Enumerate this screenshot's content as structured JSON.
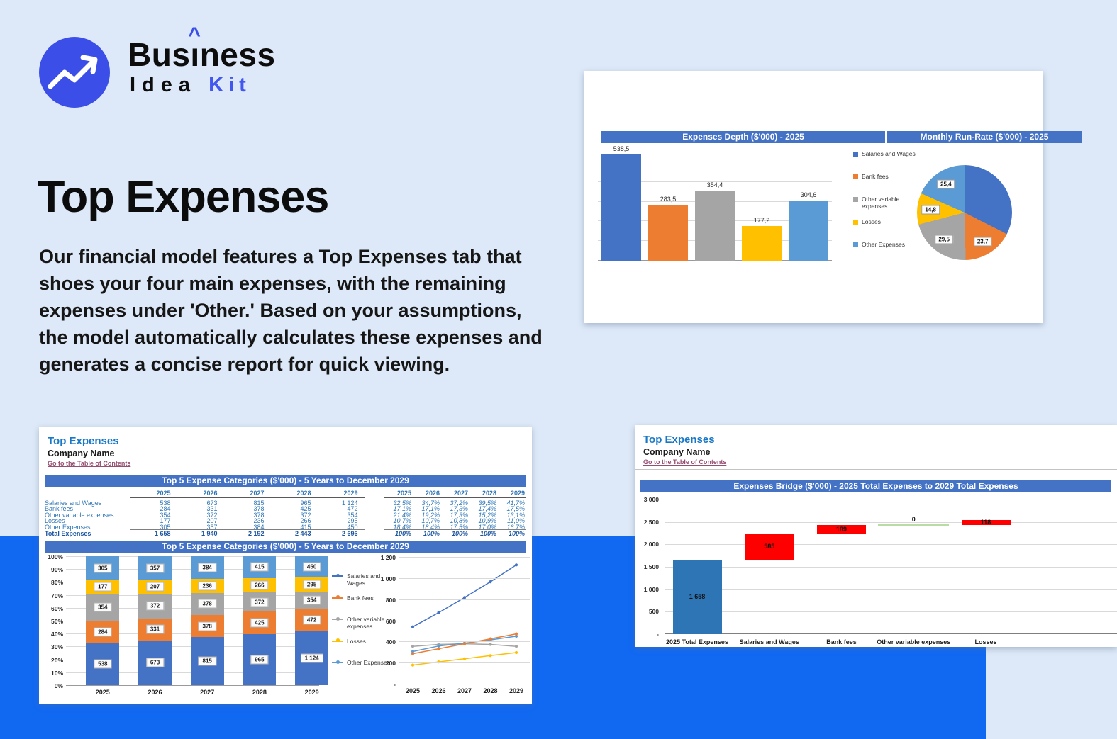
{
  "page": {
    "bg_top": "#dde9f8",
    "bg_band": "#1169f2",
    "card_bg": "#ffffff"
  },
  "logo": {
    "icon": "trend-up-arrow-icon",
    "brand_prefix": "Bus",
    "accent_letter": "ı",
    "accent_mark": "^",
    "brand_suffix": "ness",
    "line2_left": "Idea",
    "line2_right": "Kit",
    "circle_color": "#3b4fe8",
    "kit_color": "#4256f2"
  },
  "hero": {
    "title": "Top Expenses",
    "description": "Our financial model features a Top Expenses tab that shoes your four main expenses, with the remaining expenses under 'Other.' Based on your assumptions, the model automatically calculates these expenses and generates a concise report for quick viewing."
  },
  "excel": {
    "title": "Top Expenses",
    "company": "Company Name",
    "toc_link": "Go to the Table of Contents",
    "header_color": "#4472c4"
  },
  "palette": [
    "#4472c4",
    "#ed7d31",
    "#a5a5a5",
    "#ffc000",
    "#5b9bd5"
  ],
  "waterfall_colors": {
    "base": "#2e75b6",
    "increase": "#ff0000",
    "zero": "#b9dca4"
  },
  "chart_data": [
    {
      "id": "depth",
      "type": "bar",
      "title": "Expenses Depth ($'000) - 2025",
      "categories": [
        "Salaries and Wages",
        "Bank fees",
        "Other variable expenses",
        "Losses",
        "Other Expenses"
      ],
      "values": [
        538.5,
        283.5,
        354.4,
        177.2,
        304.6
      ],
      "labels": [
        "538,5",
        "283,5",
        "354,4",
        "177,2",
        "304,6"
      ],
      "ylim": [
        0,
        600
      ],
      "ytick_step": 100,
      "grid": true,
      "legend_position": "right"
    },
    {
      "id": "runrate",
      "type": "pie",
      "title": "Monthly Run-Rate ($'000) - 2025",
      "slices": [
        {
          "name": "Salaries and Wages",
          "value": 44.9,
          "label": ""
        },
        {
          "name": "Bank fees",
          "value": 23.7,
          "label": "23,7"
        },
        {
          "name": "Other variable expenses",
          "value": 29.5,
          "label": "29,5"
        },
        {
          "name": "Losses",
          "value": 14.8,
          "label": "14,8"
        },
        {
          "name": "Other Expenses",
          "value": 25.4,
          "label": "25,4"
        }
      ]
    },
    {
      "id": "top5_table",
      "type": "table",
      "title": "Top 5 Expense Categories ($'000) - 5 Years to December 2029",
      "years": [
        "2025",
        "2026",
        "2027",
        "2028",
        "2029"
      ],
      "rows": [
        {
          "label": "Salaries and Wages",
          "values": [
            "538",
            "673",
            "815",
            "965",
            "1 124"
          ],
          "pcts": [
            "32,5%",
            "34,7%",
            "37,2%",
            "39,5%",
            "41,7%"
          ]
        },
        {
          "label": "Bank fees",
          "values": [
            "284",
            "331",
            "378",
            "425",
            "472"
          ],
          "pcts": [
            "17,1%",
            "17,1%",
            "17,3%",
            "17,4%",
            "17,5%"
          ]
        },
        {
          "label": "Other variable expenses",
          "values": [
            "354",
            "372",
            "378",
            "372",
            "354"
          ],
          "pcts": [
            "21,4%",
            "19,2%",
            "17,3%",
            "15,2%",
            "13,1%"
          ]
        },
        {
          "label": "Losses",
          "values": [
            "177",
            "207",
            "236",
            "266",
            "295"
          ],
          "pcts": [
            "10,7%",
            "10,7%",
            "10,8%",
            "10,9%",
            "11,0%"
          ]
        },
        {
          "label": "Other Expenses",
          "values": [
            "305",
            "357",
            "384",
            "415",
            "450"
          ],
          "pcts": [
            "18,4%",
            "18,4%",
            "17,5%",
            "17,0%",
            "16,7%"
          ]
        }
      ],
      "total": {
        "label": "Total Expenses",
        "values": [
          "1 658",
          "1 940",
          "2 192",
          "2 443",
          "2 696"
        ],
        "pcts": [
          "100%",
          "100%",
          "100%",
          "100%",
          "100%"
        ]
      }
    },
    {
      "id": "stacked100",
      "type": "bar",
      "subtype": "stacked-100",
      "title": "Top 5 Expense Categories ($'000) - 5 Years to December 2029",
      "categories": [
        "2025",
        "2026",
        "2027",
        "2028",
        "2029"
      ],
      "series": [
        {
          "name": "Salaries and Wages",
          "values": [
            538,
            673,
            815,
            965,
            1124
          ],
          "labels": [
            "538",
            "673",
            "815",
            "965",
            "1 124"
          ]
        },
        {
          "name": "Bank fees",
          "values": [
            284,
            331,
            378,
            425,
            472
          ],
          "labels": [
            "284",
            "331",
            "378",
            "425",
            "472"
          ]
        },
        {
          "name": "Other variable expenses",
          "values": [
            354,
            372,
            378,
            372,
            354
          ],
          "labels": [
            "354",
            "372",
            "378",
            "372",
            "354"
          ]
        },
        {
          "name": "Losses",
          "values": [
            177,
            207,
            236,
            266,
            295
          ],
          "labels": [
            "177",
            "207",
            "236",
            "266",
            "295"
          ]
        },
        {
          "name": "Other Expenses",
          "values": [
            305,
            357,
            384,
            415,
            450
          ],
          "labels": [
            "305",
            "357",
            "384",
            "415",
            "450"
          ]
        }
      ],
      "totals": [
        1658,
        1940,
        2192,
        2443,
        2696
      ],
      "yticks": [
        "100%",
        "90%",
        "80%",
        "70%",
        "60%",
        "50%",
        "40%",
        "30%",
        "20%",
        "10%",
        "0%"
      ]
    },
    {
      "id": "lines",
      "type": "line",
      "categories": [
        "2025",
        "2026",
        "2027",
        "2028",
        "2029"
      ],
      "series": [
        {
          "name": "Salaries and Wages",
          "values": [
            538,
            673,
            815,
            965,
            1124
          ]
        },
        {
          "name": "Bank fees",
          "values": [
            284,
            331,
            378,
            425,
            472
          ]
        },
        {
          "name": "Other variable expenses",
          "values": [
            354,
            372,
            378,
            372,
            354
          ]
        },
        {
          "name": "Losses",
          "values": [
            177,
            207,
            236,
            266,
            295
          ]
        },
        {
          "name": "Other Expenses",
          "values": [
            305,
            357,
            384,
            415,
            450
          ]
        }
      ],
      "ylim": [
        0,
        1200
      ],
      "ytick_step": 200,
      "yticks_display": [
        "1 200",
        "1 000",
        "800",
        "600",
        "400",
        "200",
        "-"
      ],
      "legend_position": "left"
    },
    {
      "id": "bridge",
      "type": "waterfall",
      "title": "Expenses Bridge ($'000) - 2025 Total Expenses to 2029 Total Expenses",
      "categories": [
        "2025 Total Expenses",
        "Salaries and Wages",
        "Bank fees",
        "Other variable expenses",
        "Losses"
      ],
      "bars": [
        {
          "kind": "base",
          "value": 1658,
          "label": "1 658"
        },
        {
          "kind": "increase",
          "delta": 585,
          "label": "585"
        },
        {
          "kind": "increase",
          "delta": 189,
          "label": "189"
        },
        {
          "kind": "zero",
          "delta": 0,
          "label": "0"
        },
        {
          "kind": "increase",
          "delta": 118,
          "label": "118"
        }
      ],
      "ylim": [
        0,
        3000
      ],
      "ytick_step": 500,
      "yticks_display": [
        "3 000",
        "2 500",
        "2 000",
        "1 500",
        "1 000",
        "500",
        "-"
      ]
    }
  ]
}
